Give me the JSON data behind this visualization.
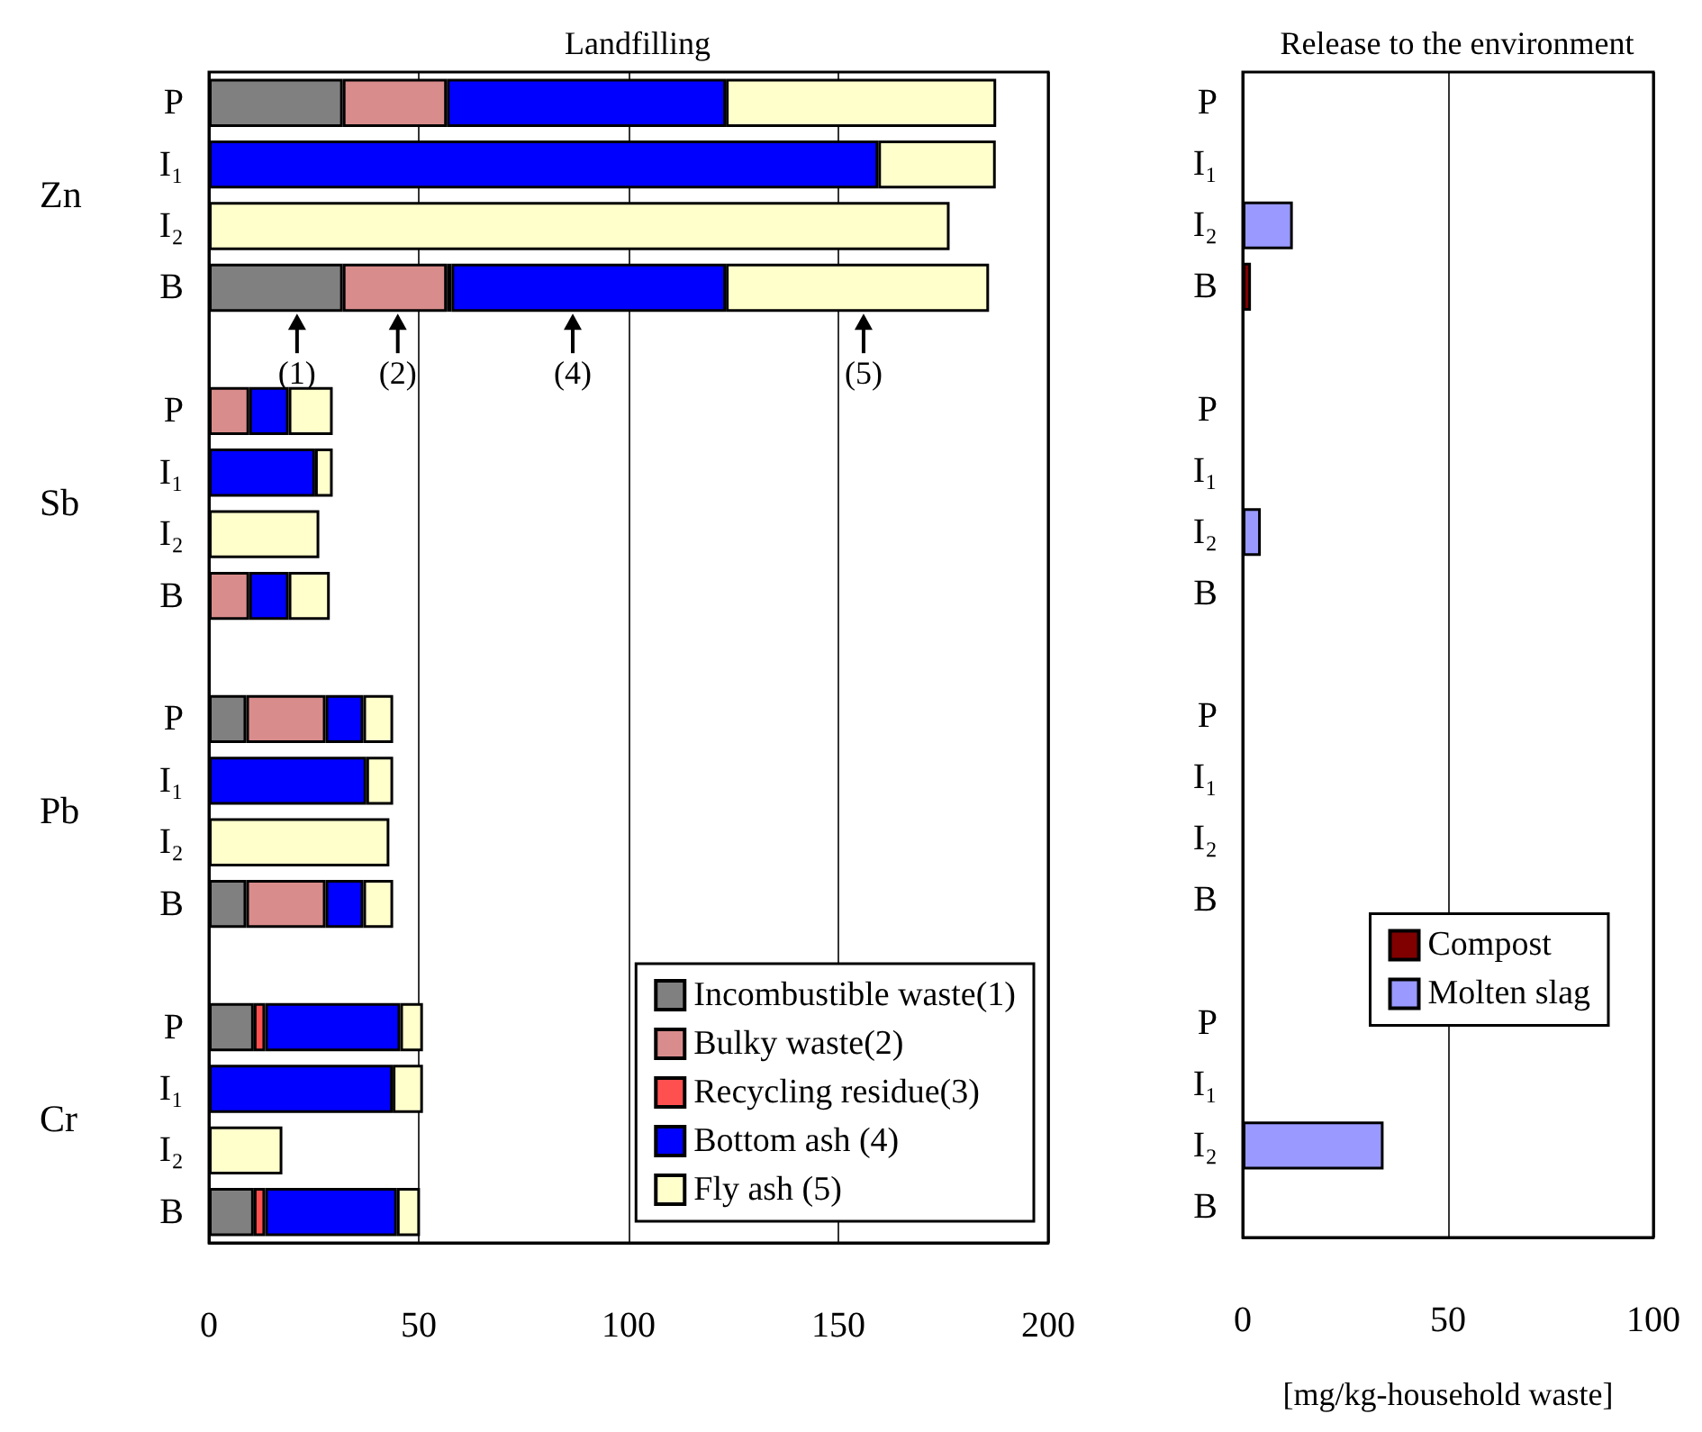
{
  "chart_data": [
    {
      "type": "bar",
      "title": "Landfilling",
      "orientation": "horizontal",
      "stacked": true,
      "categories": [
        "P",
        "I₁",
        "I₂",
        "B",
        null,
        "P",
        "I₁",
        "I₂",
        "B",
        null,
        "P",
        "I₁",
        "I₂",
        "B",
        null,
        "P",
        "I₁",
        "I₂",
        "B"
      ],
      "series": [
        {
          "name": "Incombustible waste(1)",
          "color": "#808080",
          "values": [
            31.9,
            null,
            null,
            31.9,
            null,
            null,
            null,
            null,
            null,
            null,
            8.9,
            null,
            null,
            8.9,
            null,
            10.7,
            null,
            null,
            10.7
          ]
        },
        {
          "name": "Bulky waste(2)",
          "color": "#d98c8c",
          "values": [
            24.8,
            null,
            null,
            24.8,
            null,
            9.6,
            null,
            null,
            9.6,
            null,
            18.9,
            null,
            null,
            18.9,
            null,
            null,
            null,
            null,
            null
          ]
        },
        {
          "name": "Recycling residue(3)",
          "color": "#ff5050",
          "values": [
            null,
            null,
            null,
            1.1,
            null,
            null,
            null,
            null,
            null,
            null,
            null,
            null,
            null,
            null,
            null,
            2.7,
            null,
            null,
            2.7
          ]
        },
        {
          "name": "Bottom ash (4)",
          "color": "#0000ff",
          "values": [
            66.5,
            159.5,
            null,
            65.4,
            null,
            9.4,
            25.3,
            null,
            9.4,
            null,
            9,
            37.5,
            null,
            9,
            null,
            32.2,
            43.8,
            null,
            31.4
          ]
        },
        {
          "name": "Fly ash (5)",
          "color": "#ffffcc",
          "values": [
            64.4,
            28,
            176.5,
            62.7,
            null,
            10.5,
            4.2,
            26.3,
            9.8,
            null,
            7.1,
            6.4,
            43,
            7.1,
            null,
            5.4,
            7.2,
            17.5,
            5.5
          ]
        }
      ],
      "xlim": [
        0,
        200
      ],
      "xticks": [
        0,
        50,
        100,
        150,
        200
      ],
      "grid": "x",
      "legend": "bottom right",
      "annotations": [
        "Zn",
        "Sb",
        "Pb",
        "Cr",
        {
          "text": "(1)",
          "x": 21,
          "y": "B"
        },
        {
          "text": "(2)",
          "x": 45,
          "y": "B"
        },
        {
          "text": "(4)",
          "x": 86.7,
          "y": "B"
        },
        {
          "text": "(5)",
          "x": 156,
          "y": "B"
        }
      ]
    },
    {
      "type": "bar",
      "title": "Release to the environment",
      "orientation": "horizontal",
      "stacked": true,
      "xlabel": "[mg/kg-household waste]",
      "categories": [
        "P",
        "I₁",
        "I₂",
        "B",
        null,
        "P",
        "I₁",
        "I₂",
        "B",
        null,
        "P",
        "I₁",
        "I₂",
        "B",
        null,
        "P",
        "I₁",
        "I₂",
        "B"
      ],
      "series": [
        {
          "name": "Compost",
          "color": "#800000",
          "values": [
            null,
            null,
            null,
            2,
            null,
            null,
            null,
            null,
            null,
            null,
            null,
            null,
            null,
            null,
            null,
            null,
            null,
            null,
            null
          ]
        },
        {
          "name": "Molten slag",
          "color": "#9999ff",
          "values": [
            null,
            null,
            12.2,
            null,
            null,
            null,
            null,
            4.4,
            null,
            null,
            null,
            null,
            null,
            null,
            null,
            null,
            null,
            34.3,
            null
          ]
        }
      ],
      "xlim": [
        0,
        100
      ],
      "xticks": [
        0,
        50,
        100
      ],
      "grid": "x",
      "legend": "right"
    }
  ]
}
